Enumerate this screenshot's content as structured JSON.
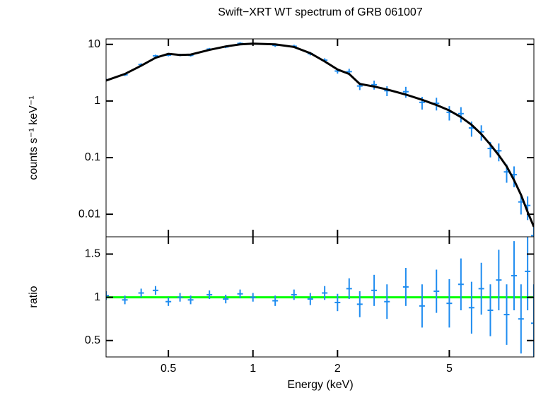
{
  "chart_data": [
    {
      "type": "line",
      "title": "Swift−XRT WT spectrum of GRB 061007",
      "ylabel": "counts s⁻¹ keV⁻¹",
      "xlog": true,
      "ylog": true,
      "xlim": [
        0.3,
        10
      ],
      "ylim": [
        0.004,
        12.5
      ],
      "xticks": [
        0.5,
        1,
        2,
        5
      ],
      "yticks": [
        10,
        1,
        0.1,
        0.01
      ],
      "x": [
        0.3,
        0.35,
        0.4,
        0.45,
        0.5,
        0.55,
        0.6,
        0.7,
        0.8,
        0.9,
        1.0,
        1.2,
        1.4,
        1.6,
        1.8,
        2.0,
        2.2,
        2.4,
        2.7,
        3.0,
        3.5,
        4.0,
        4.5,
        5.0,
        5.5,
        6.0,
        6.5,
        7.0,
        7.5,
        8.0,
        8.5,
        9.0,
        9.5,
        10
      ],
      "series": [
        {
          "style": "errorbar",
          "color": "#1e8cf0",
          "values": [
            2.35,
            2.91,
            4.41,
            6.26,
            6.46,
            6.5,
            6.4,
            8.24,
            9.02,
            10.4,
            10.3,
            9.6,
            9.27,
            6.86,
            5.25,
            3.38,
            3.3,
            1.84,
            1.94,
            1.52,
            1.46,
            0.945,
            0.91,
            0.632,
            0.598,
            0.334,
            0.286,
            0.145,
            0.132,
            0.056,
            0.05,
            0.0165,
            0.0143,
            0.0042
          ],
          "errors": [
            0.12,
            0.15,
            0.22,
            0.31,
            0.32,
            0.33,
            0.32,
            0.41,
            0.45,
            0.52,
            0.52,
            0.58,
            0.56,
            0.48,
            0.42,
            0.34,
            0.4,
            0.28,
            0.35,
            0.3,
            0.32,
            0.24,
            0.23,
            0.18,
            0.18,
            0.1,
            0.086,
            0.044,
            0.046,
            0.02,
            0.02,
            0.0066,
            0.0064,
            0.0019
          ]
        },
        {
          "style": "line",
          "color": "#000000",
          "values": [
            2.3,
            3.0,
            4.2,
            5.8,
            6.8,
            6.5,
            6.6,
            8.0,
            9.2,
            10,
            10.3,
            10,
            9,
            7,
            5,
            3.6,
            3.0,
            2.0,
            1.8,
            1.6,
            1.3,
            1.05,
            0.85,
            0.68,
            0.52,
            0.38,
            0.26,
            0.17,
            0.11,
            0.07,
            0.04,
            0.022,
            0.011,
            0.006
          ]
        }
      ]
    },
    {
      "type": "line",
      "xlabel": "Energy (keV)",
      "ylabel": "ratio",
      "xlog": true,
      "ylog": false,
      "xlim": [
        0.3,
        10
      ],
      "ylim": [
        0.31,
        1.7
      ],
      "xticks": [
        0.5,
        1,
        2,
        5
      ],
      "yticks": [
        1.5,
        1,
        0.5
      ],
      "x": [
        0.3,
        0.35,
        0.4,
        0.45,
        0.5,
        0.55,
        0.6,
        0.7,
        0.8,
        0.9,
        1.0,
        1.2,
        1.4,
        1.6,
        1.8,
        2.0,
        2.2,
        2.4,
        2.7,
        3.0,
        3.5,
        4.0,
        4.5,
        5.0,
        5.5,
        6.0,
        6.5,
        7.0,
        7.5,
        8.0,
        8.5,
        9.0,
        9.5,
        10
      ],
      "series": [
        {
          "style": "errorbar",
          "color": "#1e8cf0",
          "values": [
            1.02,
            0.97,
            1.05,
            1.08,
            0.95,
            1.0,
            0.97,
            1.03,
            0.98,
            1.04,
            1.0,
            0.96,
            1.03,
            0.98,
            1.05,
            0.94,
            1.1,
            0.92,
            1.08,
            0.95,
            1.12,
            0.9,
            1.07,
            0.93,
            1.15,
            0.88,
            1.1,
            0.85,
            1.2,
            0.8,
            1.25,
            0.75,
            1.3,
            0.7
          ],
          "errors": [
            0.05,
            0.05,
            0.05,
            0.05,
            0.05,
            0.05,
            0.05,
            0.05,
            0.05,
            0.05,
            0.05,
            0.06,
            0.06,
            0.07,
            0.08,
            0.1,
            0.12,
            0.15,
            0.18,
            0.2,
            0.22,
            0.25,
            0.25,
            0.28,
            0.3,
            0.3,
            0.3,
            0.3,
            0.35,
            0.35,
            0.4,
            0.4,
            0.45,
            0.45
          ]
        }
      ],
      "hline": {
        "value": 1,
        "color": "#00ff00"
      }
    }
  ]
}
